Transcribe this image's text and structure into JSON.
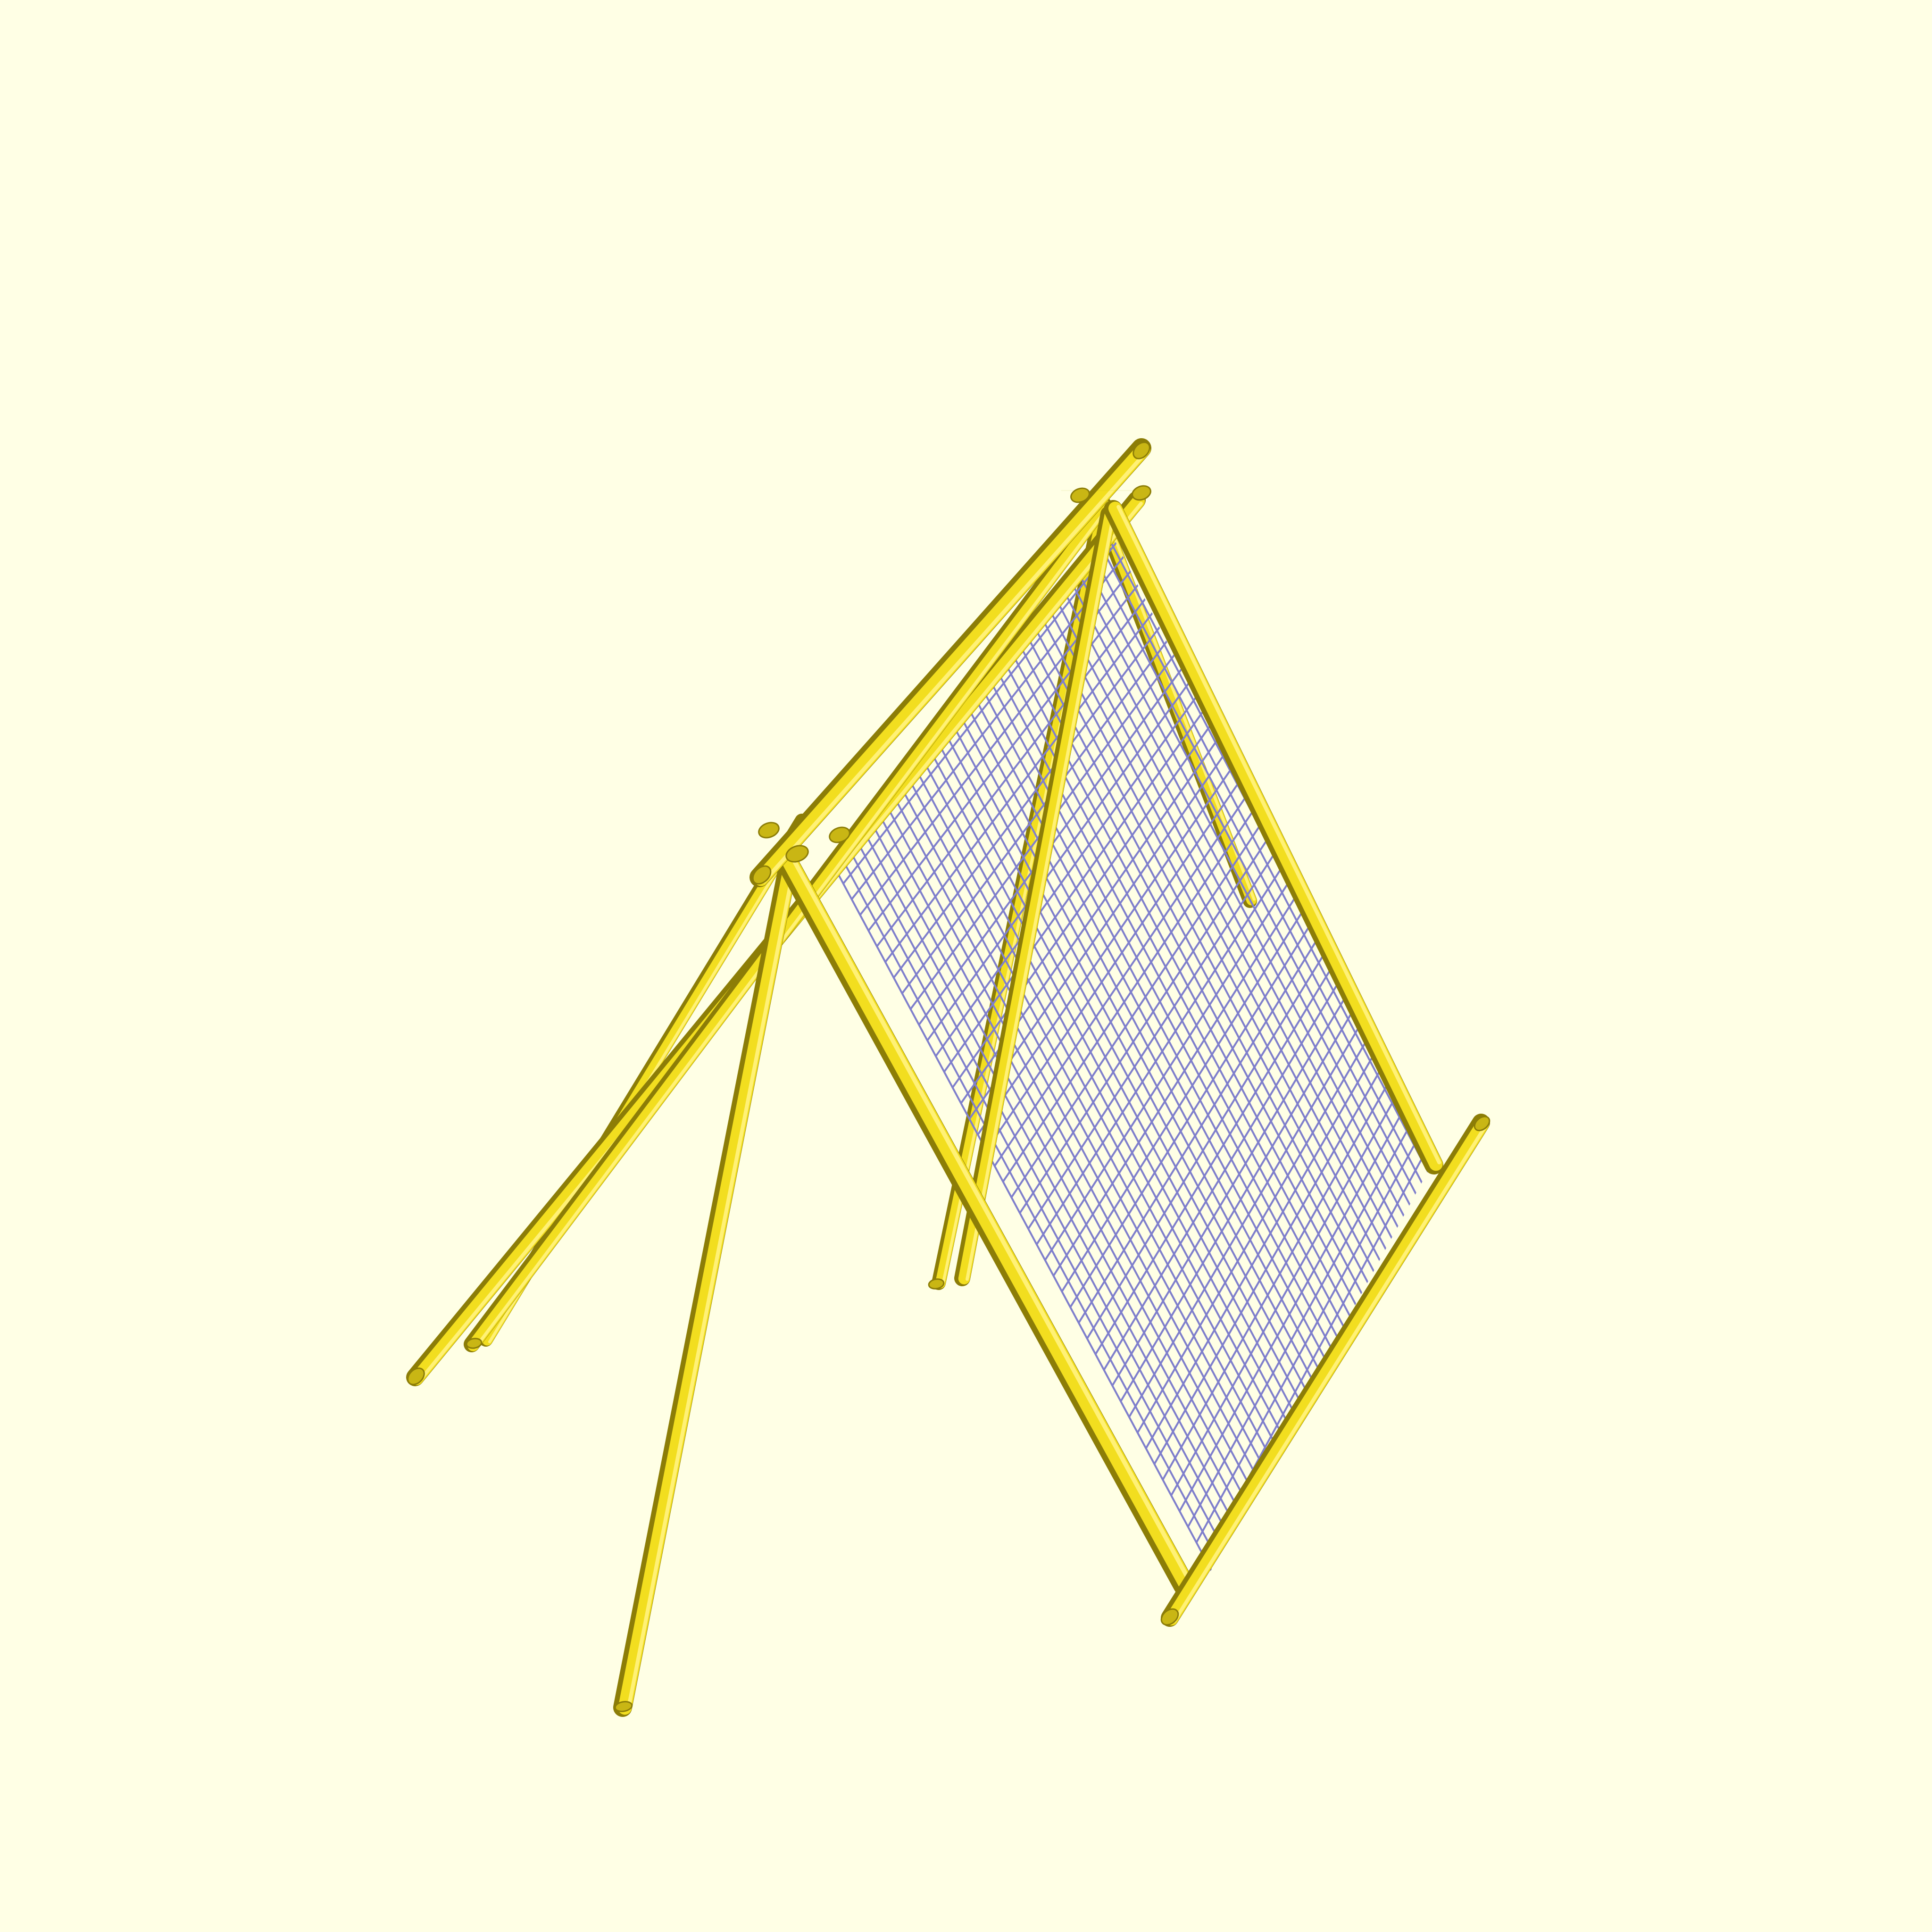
{
  "viewport": {
    "background_color": "#ffffe5",
    "content": "3D model render"
  },
  "model": {
    "pole_color": "#f2de1f",
    "pole_shadow_color": "#8c7d07",
    "pole_highlight_color": "#fff176",
    "mesh_color": "#7f7fcc",
    "mesh_dense_color": "#5c5ce6",
    "parts": [
      "ridge-pole",
      "front-left-leg",
      "front-right-leg",
      "rear-left-leg",
      "rear-right-leg",
      "diagonal-brace",
      "ground-rail",
      "mesh-panel"
    ]
  }
}
